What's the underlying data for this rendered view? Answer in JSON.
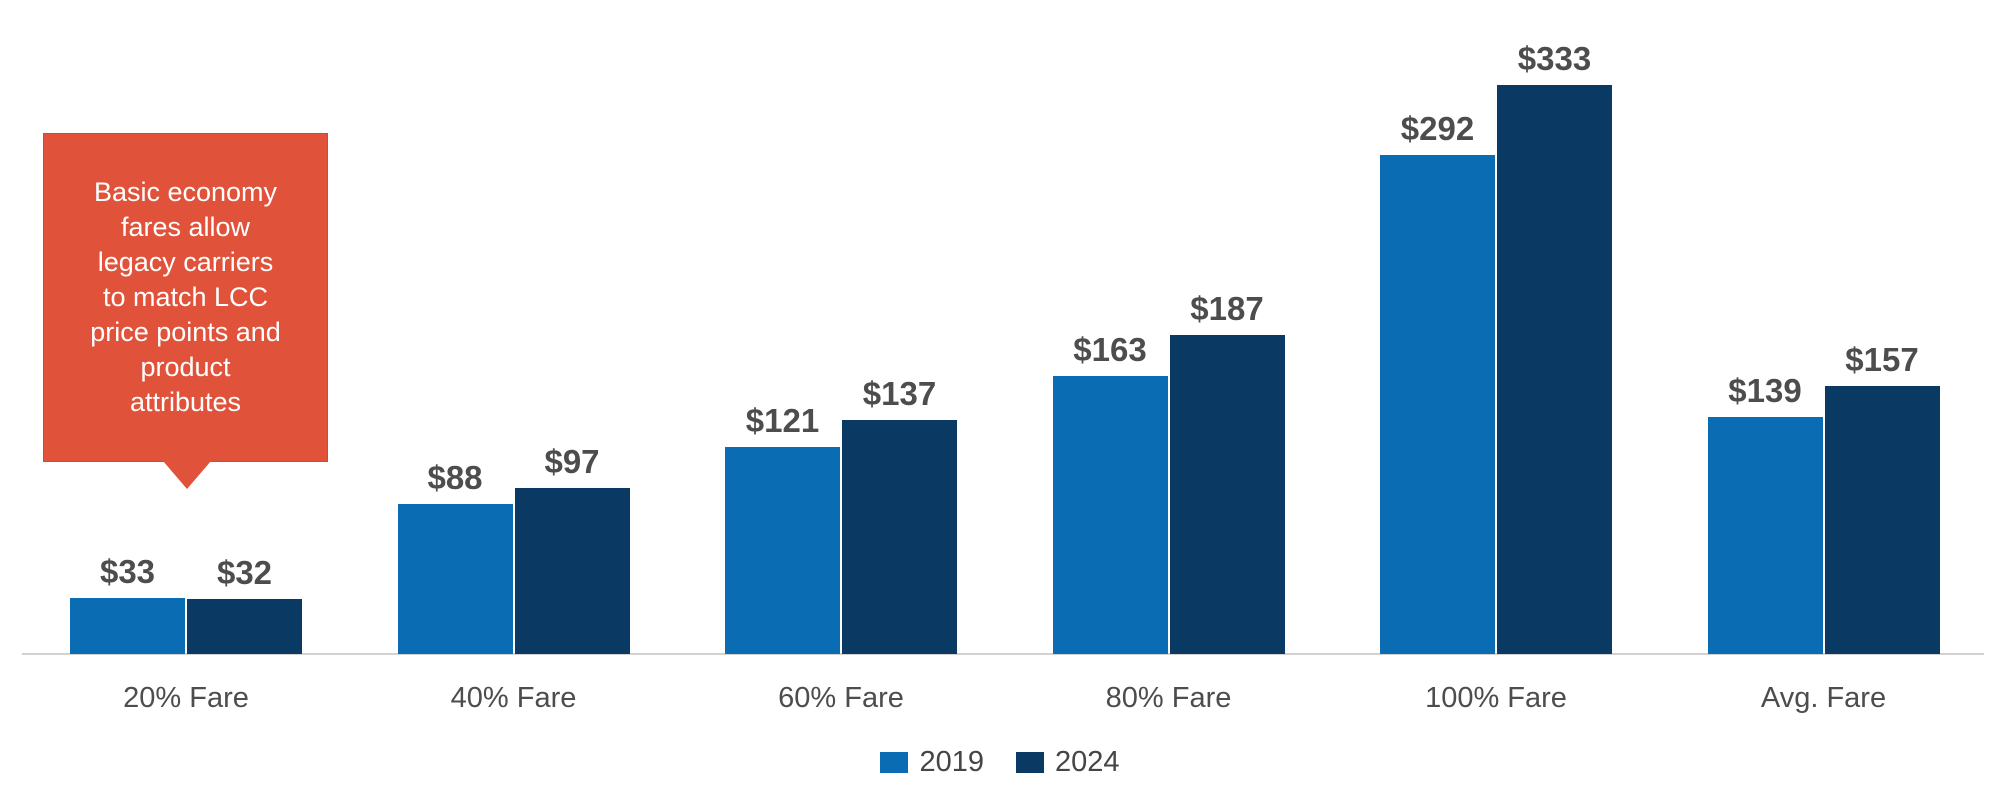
{
  "chart_data": {
    "type": "bar",
    "categories": [
      "20% Fare",
      "40% Fare",
      "60% Fare",
      "80% Fare",
      "100% Fare",
      "Avg. Fare"
    ],
    "series": [
      {
        "name": "2019",
        "color": "#0A6CB3",
        "values": [
          33,
          88,
          121,
          163,
          292,
          139
        ]
      },
      {
        "name": "2024",
        "color": "#0A3963",
        "values": [
          32,
          97,
          137,
          187,
          333,
          157
        ]
      }
    ],
    "value_prefix": "$",
    "data_labels": [
      [
        "$33",
        "$88",
        "$121",
        "$163",
        "$292",
        "$139"
      ],
      [
        "$32",
        "$97",
        "$137",
        "$187",
        "$333",
        "$157"
      ]
    ],
    "title": "",
    "xlabel": "",
    "ylabel": "",
    "ylim": [
      0,
      383
    ],
    "grid": false,
    "y_axis_visible": false,
    "legend_position": "bottom-center"
  },
  "callout": {
    "text": "Basic economy\nfares allow\nlegacy carriers\nto match LCC\nprice points and\nproduct\nattributes",
    "background": "#E0523A",
    "border_color": "#CE4A32",
    "text_color": "#FFFFFF"
  },
  "colors": {
    "bar_2019": "#0A6CB3",
    "bar_2024": "#0A3963",
    "value_label_text": "#4D4D4D",
    "axis_label_text": "#4D4D4D",
    "axis_line": "#D2D2D2",
    "background": "#FFFFFF"
  }
}
